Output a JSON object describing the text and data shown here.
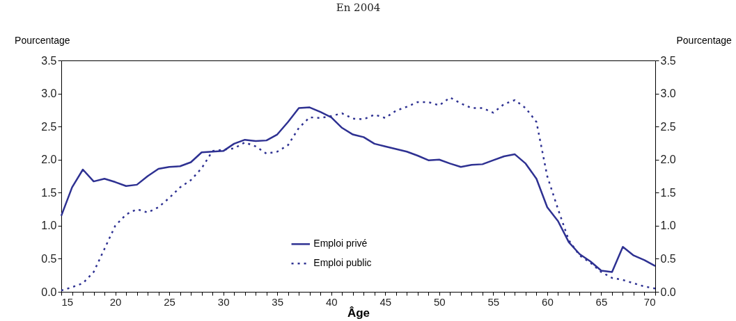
{
  "chart_data": {
    "type": "line",
    "subtitle": "En 2004",
    "xlabel": "Âge",
    "ylabel": "Pourcentage",
    "y2label": "Pourcentage",
    "x": [
      15,
      16,
      17,
      18,
      19,
      20,
      21,
      22,
      23,
      24,
      25,
      26,
      27,
      28,
      29,
      30,
      31,
      32,
      33,
      34,
      35,
      36,
      37,
      38,
      39,
      40,
      41,
      42,
      43,
      44,
      45,
      46,
      47,
      48,
      49,
      50,
      51,
      52,
      53,
      54,
      55,
      56,
      57,
      58,
      59,
      60,
      61,
      62,
      63,
      64,
      65,
      66,
      67,
      68,
      69,
      70
    ],
    "series": [
      {
        "name": "Emploi privé",
        "color": "#2e3192",
        "line_style": "solid",
        "values": [
          1.15,
          1.58,
          1.85,
          1.67,
          1.71,
          1.66,
          1.6,
          1.62,
          1.75,
          1.86,
          1.89,
          1.9,
          1.96,
          2.11,
          2.12,
          2.13,
          2.24,
          2.3,
          2.28,
          2.29,
          2.38,
          2.57,
          2.78,
          2.79,
          2.72,
          2.64,
          2.48,
          2.38,
          2.34,
          2.24,
          2.2,
          2.16,
          2.12,
          2.06,
          1.99,
          2.0,
          1.94,
          1.89,
          1.92,
          1.93,
          1.99,
          2.05,
          2.08,
          1.94,
          1.71,
          1.28,
          1.07,
          0.75,
          0.57,
          0.46,
          0.32,
          0.3,
          0.68,
          0.55,
          0.48,
          0.39
        ]
      },
      {
        "name": "Emploi public",
        "color": "#2e3192",
        "line_style": "dotted",
        "values": [
          0.02,
          0.07,
          0.13,
          0.3,
          0.65,
          1.0,
          1.17,
          1.25,
          1.2,
          1.28,
          1.42,
          1.58,
          1.69,
          1.87,
          2.13,
          2.15,
          2.17,
          2.26,
          2.2,
          2.09,
          2.12,
          2.22,
          2.48,
          2.64,
          2.63,
          2.66,
          2.7,
          2.62,
          2.61,
          2.68,
          2.63,
          2.74,
          2.8,
          2.87,
          2.87,
          2.82,
          2.94,
          2.85,
          2.78,
          2.78,
          2.71,
          2.84,
          2.9,
          2.78,
          2.57,
          1.75,
          1.25,
          0.78,
          0.55,
          0.44,
          0.3,
          0.21,
          0.18,
          0.13,
          0.08,
          0.05
        ]
      }
    ],
    "xlim": [
      15,
      70
    ],
    "xticks": [
      15,
      {
        "value": 16,
        "label": null
      },
      {
        "value": 17,
        "label": null
      },
      {
        "value": 18,
        "label": null
      },
      {
        "value": 19,
        "label": null
      },
      20,
      {
        "value": 21,
        "label": null
      },
      {
        "value": 22,
        "label": null
      },
      {
        "value": 23,
        "label": null
      },
      {
        "value": 24,
        "label": null
      },
      25,
      {
        "value": 26,
        "label": null
      },
      {
        "value": 27,
        "label": null
      },
      {
        "value": 28,
        "label": null
      },
      {
        "value": 29,
        "label": null
      },
      30,
      {
        "value": 31,
        "label": null
      },
      {
        "value": 32,
        "label": null
      },
      {
        "value": 33,
        "label": null
      },
      {
        "value": 34,
        "label": null
      },
      35,
      {
        "value": 36,
        "label": null
      },
      {
        "value": 37,
        "label": null
      },
      {
        "value": 38,
        "label": null
      },
      {
        "value": 39,
        "label": null
      },
      40,
      {
        "value": 41,
        "label": null
      },
      {
        "value": 42,
        "label": null
      },
      {
        "value": 43,
        "label": null
      },
      {
        "value": 44,
        "label": null
      },
      45,
      {
        "value": 46,
        "label": null
      },
      {
        "value": 47,
        "label": null
      },
      {
        "value": 48,
        "label": null
      },
      {
        "value": 49,
        "label": null
      },
      50,
      {
        "value": 51,
        "label": null
      },
      {
        "value": 52,
        "label": null
      },
      {
        "value": 53,
        "label": null
      },
      {
        "value": 54,
        "label": null
      },
      55,
      {
        "value": 56,
        "label": null
      },
      {
        "value": 57,
        "label": null
      },
      {
        "value": 58,
        "label": null
      },
      {
        "value": 59,
        "label": null
      },
      60,
      {
        "value": 61,
        "label": null
      },
      {
        "value": 62,
        "label": null
      },
      {
        "value": 63,
        "label": null
      },
      {
        "value": 64,
        "label": null
      },
      65,
      {
        "value": 66,
        "label": null
      },
      {
        "value": 67,
        "label": null
      },
      {
        "value": 68,
        "label": null
      },
      {
        "value": 69,
        "label": null
      },
      70
    ],
    "ylim": [
      0,
      3.5
    ],
    "yticks": [
      {
        "value": 0,
        "label": "0.0"
      },
      0.5,
      {
        "value": 1,
        "label": "1.0"
      },
      1.5,
      {
        "value": 2,
        "label": "2.0"
      },
      2.5,
      {
        "value": 3,
        "label": "3.0"
      },
      3.5
    ],
    "y2lim": [
      0,
      3.5
    ],
    "y2ticks": [
      {
        "value": 0,
        "label": "0.0"
      },
      0.5,
      {
        "value": 1,
        "label": "1.0"
      },
      1.5,
      {
        "value": 2,
        "label": "2.0"
      },
      2.5,
      {
        "value": 3,
        "label": "3.0"
      },
      3.5
    ],
    "legend": "bottom",
    "grid": false
  }
}
